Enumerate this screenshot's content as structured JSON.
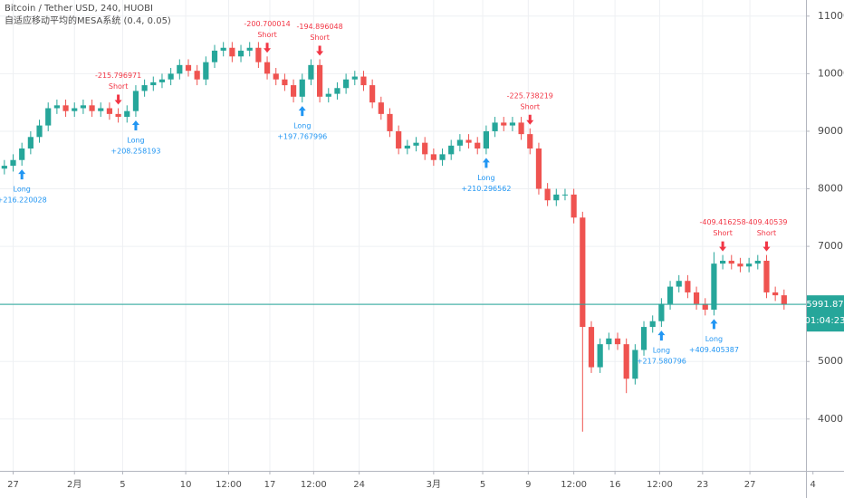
{
  "chart_data": {
    "type": "candlestick",
    "title": "Bitcoin / Tether USD, 240, HUOBI",
    "subtitle": "自适应移动平均的MESA系统 (0.4, 0.05)",
    "up_color": "#26a69a",
    "down_color": "#ef5350",
    "price_line_color": "#26a69a",
    "grid": true,
    "long_color": "#2196f3",
    "short_color": "#f23645",
    "xlim": [
      -0.5,
      91.5
    ],
    "xticks": [
      {
        "value": 1,
        "label": "27"
      },
      {
        "value": 8,
        "label": "2月"
      },
      {
        "value": 13.5,
        "label": "5"
      },
      {
        "value": 20.7,
        "label": "10"
      },
      {
        "value": 25.6,
        "label": "12:00"
      },
      {
        "value": 30.3,
        "label": "17"
      },
      {
        "value": 35.3,
        "label": "12:00"
      },
      {
        "value": 40.5,
        "label": "24"
      },
      {
        "value": 49,
        "label": "3月"
      },
      {
        "value": 54.6,
        "label": "5"
      },
      {
        "value": 59.8,
        "label": "9"
      },
      {
        "value": 65,
        "label": "12:00"
      },
      {
        "value": 69.7,
        "label": "16"
      },
      {
        "value": 74.8,
        "label": "12:00"
      },
      {
        "value": 79.7,
        "label": "23"
      },
      {
        "value": 85.1,
        "label": "27"
      },
      {
        "value": 92.3,
        "label": "4"
      }
    ],
    "ylim": [
      3100,
      11280
    ],
    "yticks": [
      {
        "value": 4000,
        "label": "4000.00"
      },
      {
        "value": 5000,
        "label": "5000.00"
      },
      {
        "value": 6000,
        "label": "6000.00"
      },
      {
        "value": 7000,
        "label": "7000.00"
      },
      {
        "value": 8000,
        "label": "8000.00"
      },
      {
        "value": 9000,
        "label": "9000.00"
      },
      {
        "value": 10000,
        "label": "10000.00"
      },
      {
        "value": 11000,
        "label": "11000.00"
      }
    ],
    "open": [
      8350,
      8400,
      8500,
      8700,
      8900,
      9100,
      9400,
      9450,
      9350,
      9400,
      9450,
      9350,
      9400,
      9300,
      9250,
      9350,
      9700,
      9800,
      9850,
      9900,
      10000,
      10150,
      10050,
      9900,
      10200,
      10400,
      10450,
      10300,
      10400,
      10450,
      10200,
      10000,
      9900,
      9800,
      9600,
      9900,
      10150,
      9600,
      9650,
      9750,
      9900,
      9950,
      9800,
      9500,
      9300,
      9000,
      8700,
      8750,
      8800,
      8600,
      8500,
      8600,
      8750,
      8850,
      8800,
      8700,
      9000,
      9150,
      9100,
      9150,
      8950,
      8700,
      8000,
      7800,
      7900,
      7900,
      7500,
      5600,
      4900,
      5300,
      5400,
      5300,
      4700,
      5200,
      5600,
      5700,
      6000,
      6300,
      6400,
      6200,
      6000,
      5900,
      6700,
      6750,
      6700,
      6650,
      6700,
      6750,
      6200,
      6150
    ],
    "high": [
      8500,
      8600,
      8800,
      9000,
      9200,
      9500,
      9550,
      9550,
      9500,
      9550,
      9550,
      9500,
      9500,
      9400,
      9450,
      9800,
      9900,
      9950,
      10000,
      10100,
      10250,
      10250,
      10150,
      10300,
      10500,
      10550,
      10550,
      10500,
      10550,
      10550,
      10300,
      10100,
      10000,
      9900,
      10000,
      10250,
      10250,
      9750,
      9850,
      10000,
      10050,
      10050,
      9900,
      9600,
      9400,
      9100,
      8850,
      8900,
      8900,
      8700,
      8700,
      8850,
      8950,
      8950,
      8900,
      9100,
      9250,
      9250,
      9250,
      9250,
      9050,
      8800,
      8100,
      8000,
      8000,
      8000,
      7600,
      5700,
      5400,
      5500,
      5500,
      5400,
      5300,
      5700,
      5800,
      6100,
      6400,
      6500,
      6500,
      6300,
      6100,
      6900,
      6850,
      6850,
      6800,
      6800,
      6850,
      6850,
      6300,
      6250
    ],
    "low": [
      8250,
      8300,
      8400,
      8600,
      8800,
      9000,
      9300,
      9250,
      9250,
      9300,
      9250,
      9250,
      9200,
      9150,
      9150,
      9250,
      9600,
      9700,
      9750,
      9800,
      9900,
      9950,
      9800,
      9800,
      10100,
      10300,
      10200,
      10200,
      10300,
      10100,
      9900,
      9800,
      9700,
      9500,
      9500,
      9800,
      9500,
      9500,
      9550,
      9650,
      9800,
      9700,
      9400,
      9200,
      8900,
      8600,
      8600,
      8650,
      8500,
      8400,
      8400,
      8500,
      8650,
      8700,
      8600,
      8600,
      8900,
      9000,
      9000,
      8850,
      8600,
      7900,
      7700,
      7700,
      7800,
      7400,
      3780,
      4800,
      4800,
      5200,
      5200,
      4450,
      4600,
      5100,
      5500,
      5600,
      5900,
      6200,
      6100,
      5900,
      5800,
      5800,
      6600,
      6600,
      6550,
      6550,
      6600,
      6100,
      6050,
      5900
    ],
    "close": [
      8400,
      8500,
      8700,
      8900,
      9100,
      9400,
      9450,
      9350,
      9400,
      9450,
      9350,
      9400,
      9300,
      9250,
      9350,
      9700,
      9800,
      9850,
      9900,
      10000,
      10150,
      10050,
      9900,
      10200,
      10400,
      10450,
      10300,
      10400,
      10450,
      10200,
      10000,
      9900,
      9800,
      9600,
      9900,
      10150,
      9600,
      9650,
      9750,
      9900,
      9950,
      9800,
      9500,
      9300,
      9000,
      8700,
      8750,
      8800,
      8600,
      8500,
      8600,
      8750,
      8850,
      8800,
      8700,
      9000,
      9150,
      9100,
      9150,
      8950,
      8700,
      8000,
      7800,
      7900,
      7900,
      7500,
      5600,
      4900,
      5300,
      5400,
      5300,
      4700,
      5200,
      5600,
      5700,
      6000,
      6300,
      6400,
      6200,
      6000,
      5900,
      6700,
      6750,
      6700,
      6650,
      6700,
      6750,
      6200,
      6150,
      5991.87
    ],
    "countdown": "01:04:23",
    "long_signals": [
      {
        "x": 2,
        "label": "Long",
        "value": "+216.220028"
      },
      {
        "x": 15,
        "label": "Long",
        "value": "+208.258193"
      },
      {
        "x": 34,
        "label": "Long",
        "value": "+197.767996"
      },
      {
        "x": 55,
        "label": "Long",
        "value": "+210.296562"
      },
      {
        "x": 75,
        "label": "Long",
        "value": "+217.580796"
      },
      {
        "x": 81,
        "label": "Long",
        "value": "+409.405387"
      }
    ],
    "short_signals": [
      {
        "x": 13,
        "label": "Short",
        "value": "-215.796971"
      },
      {
        "x": 30,
        "label": "Short",
        "value": "-200.700014"
      },
      {
        "x": 36,
        "label": "Short",
        "value": "-194.896048"
      },
      {
        "x": 60,
        "label": "Short",
        "value": "-225.738219"
      },
      {
        "x": 82,
        "label": "Short",
        "value": "-409.416258"
      },
      {
        "x": 87,
        "label": "Short",
        "value": "-409.40539"
      }
    ]
  }
}
